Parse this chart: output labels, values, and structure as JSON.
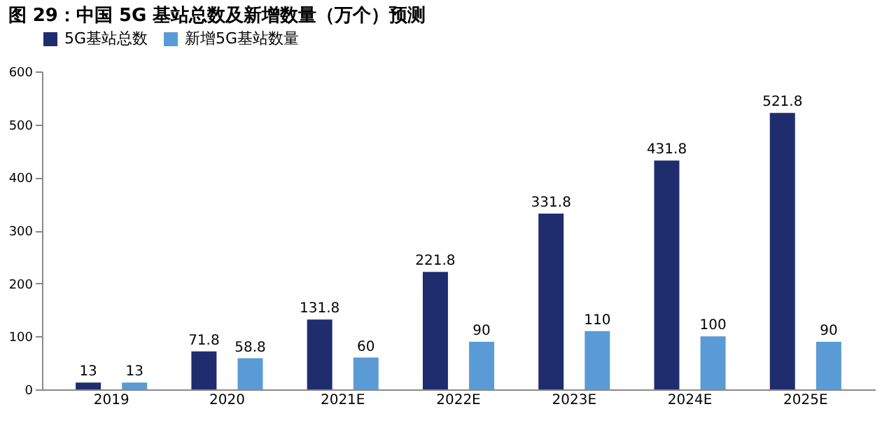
{
  "chart_data": {
    "type": "bar",
    "title": "图 29：中国 5G 基站总数及新增数量（万个）预测",
    "categories": [
      "2019",
      "2020",
      "2021E",
      "2022E",
      "2023E",
      "2024E",
      "2025E"
    ],
    "series": [
      {
        "name": "5G基站总数",
        "color": "#1f2d6e",
        "values": [
          13,
          71.8,
          131.8,
          221.8,
          331.8,
          431.8,
          521.8
        ]
      },
      {
        "name": "新增5G基站数量",
        "color": "#5b9bd5",
        "values": [
          13,
          58.8,
          60,
          90,
          110,
          100,
          90
        ]
      }
    ],
    "ylim": [
      0,
      600
    ],
    "yticks": [
      0,
      100,
      200,
      300,
      400,
      500,
      600
    ],
    "grid": false,
    "legend": "top",
    "data_labels": true
  }
}
